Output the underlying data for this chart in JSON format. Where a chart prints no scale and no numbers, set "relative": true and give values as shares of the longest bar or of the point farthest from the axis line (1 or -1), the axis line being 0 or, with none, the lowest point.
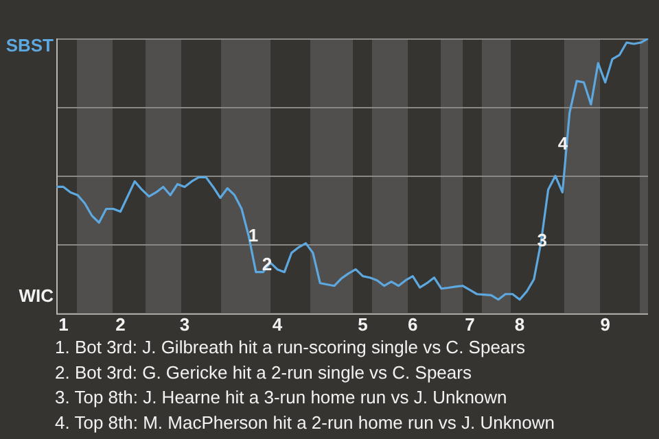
{
  "chart_data": {
    "type": "line",
    "relative": true,
    "marker": "none",
    "grid": "y",
    "legend": false,
    "categories": [
      null,
      "1",
      null,
      null,
      null,
      null,
      null,
      null,
      null,
      "2",
      null,
      null,
      null,
      null,
      null,
      null,
      null,
      null,
      "3",
      null,
      null,
      null,
      null,
      null,
      null,
      null,
      null,
      null,
      null,
      null,
      null,
      "4",
      null,
      null,
      null,
      null,
      null,
      null,
      null,
      null,
      null,
      null,
      null,
      "5",
      null,
      null,
      null,
      null,
      null,
      null,
      "6",
      null,
      null,
      null,
      null,
      null,
      null,
      null,
      "7",
      null,
      null,
      null,
      null,
      null,
      null,
      "8",
      null,
      null,
      null,
      null,
      null,
      null,
      null,
      null,
      null,
      null,
      null,
      "9",
      null,
      null,
      null,
      null,
      null,
      null
    ],
    "series": [
      {
        "color": "#5ea8e0",
        "values": [
          0.46,
          0.46,
          0.44,
          0.43,
          0.4,
          0.355,
          0.33,
          0.38,
          0.38,
          0.37,
          0.425,
          0.48,
          0.45,
          0.425,
          0.44,
          0.46,
          0.43,
          0.47,
          0.46,
          0.48,
          0.495,
          0.495,
          0.46,
          0.42,
          0.455,
          0.43,
          0.38,
          0.28,
          0.15,
          0.15,
          0.185,
          0.16,
          0.15,
          0.22,
          0.24,
          0.255,
          0.22,
          0.11,
          0.105,
          0.1,
          0.127,
          0.145,
          0.16,
          0.135,
          0.13,
          0.12,
          0.1,
          0.115,
          0.1,
          0.12,
          0.135,
          0.094,
          0.11,
          0.13,
          0.09,
          0.093,
          0.097,
          0.1,
          0.085,
          0.07,
          0.068,
          0.066,
          0.05,
          0.07,
          0.07,
          0.05,
          0.08,
          0.124,
          0.26,
          0.45,
          0.5,
          0.44,
          0.73,
          0.845,
          0.84,
          0.76,
          0.91,
          0.84,
          0.925,
          0.94,
          0.985,
          0.98,
          0.985,
          1
        ]
      }
    ],
    "annotations": [
      "SBST",
      "WIC",
      "1",
      "2",
      "3",
      "4",
      "1. Bot 3rd: J. Gilbreath hit a run-scoring single vs C. Spears",
      "2. Bot 3rd: G. Gericke hit a 2-run single vs C. Spears",
      "3. Top 8th: J. Hearne hit a 3-run home run vs J. Unknown",
      "4. Top 8th: M. MacPherson hit a 2-run home run vs J. Unknown"
    ]
  }
}
